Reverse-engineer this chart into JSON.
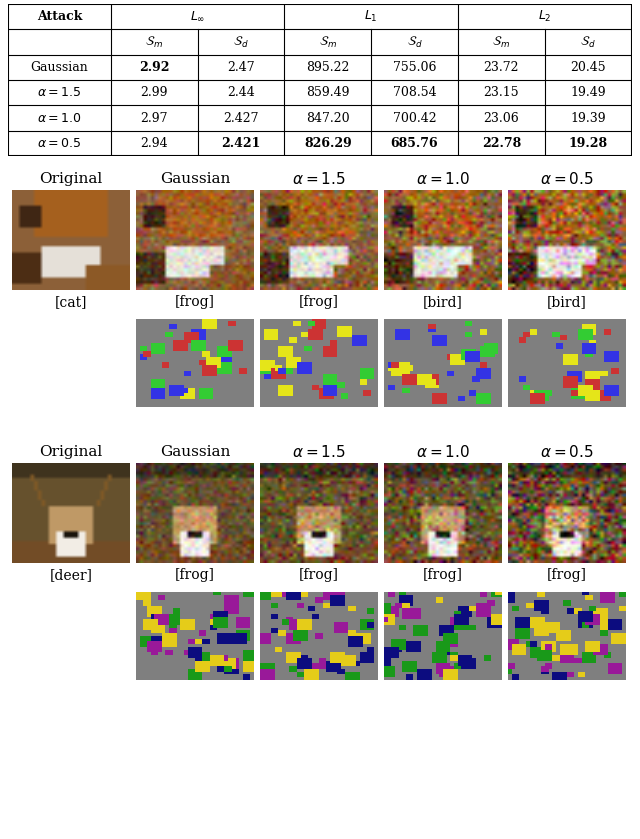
{
  "table": {
    "rows": [
      [
        "Gaussian",
        "2.92",
        "2.47",
        "895.22",
        "755.06",
        "23.72",
        "20.45"
      ],
      [
        "α = 1.5",
        "2.99",
        "2.44",
        "859.49",
        "708.54",
        "23.15",
        "19.49"
      ],
      [
        "α = 1.0",
        "2.97",
        "2.427",
        "847.20",
        "700.42",
        "23.06",
        "19.39"
      ],
      [
        "α = 0.5",
        "2.94",
        "2.421",
        "826.29",
        "685.76",
        "22.78",
        "19.28"
      ]
    ],
    "bold_cells": {
      "0": [
        1
      ],
      "3": [
        2,
        3,
        4,
        5,
        6
      ]
    }
  },
  "col_label_texts": [
    "Original",
    "Gaussian",
    "$\\alpha = 1.5$",
    "$\\alpha = 1.0$",
    "$\\alpha = 0.5$"
  ],
  "row1_image_labels": [
    "[cat]",
    "[frog]",
    "[frog]",
    "[bird]",
    "[bird]"
  ],
  "row2_image_labels": [
    "[deer]",
    "[frog]",
    "[frog]",
    "[frog]",
    "[frog]"
  ],
  "bg_color": "#ffffff"
}
